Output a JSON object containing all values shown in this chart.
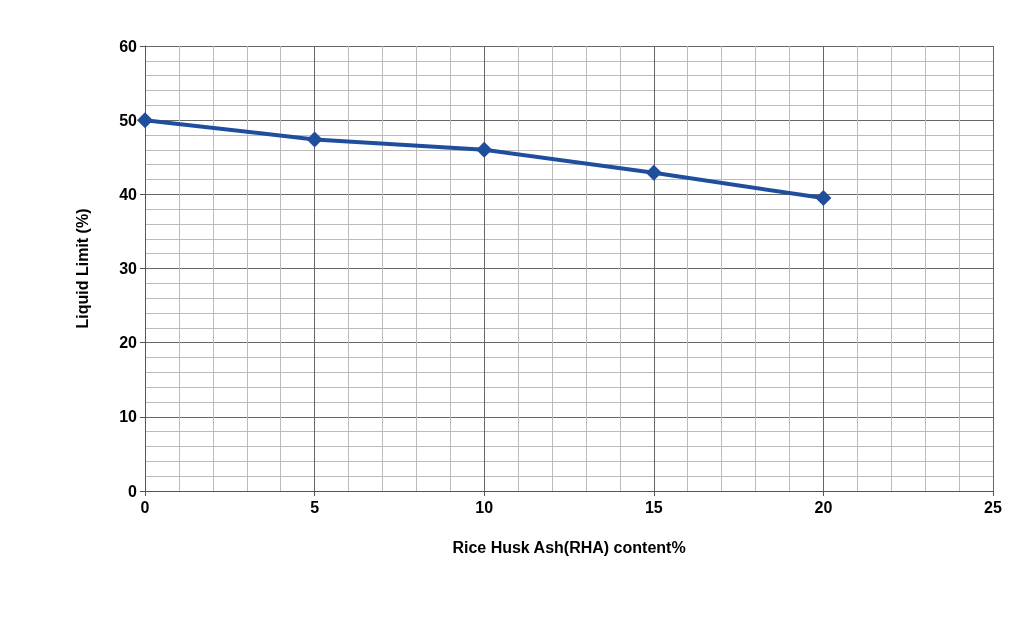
{
  "chart_data": {
    "type": "line",
    "xlabel": "Rice Husk Ash(RHA) content%",
    "ylabel": "Liquid Limit (%)",
    "x": [
      0,
      5,
      10,
      15,
      20
    ],
    "series": [
      {
        "color": "#1f4e9c",
        "values": [
          50,
          47.4,
          46,
          42.9,
          39.5
        ]
      }
    ],
    "xlim": [
      0,
      25
    ],
    "xticks": [
      0,
      5,
      10,
      15,
      20,
      25
    ],
    "ylim": [
      0,
      60
    ],
    "yticks": [
      0,
      10,
      20,
      30,
      40,
      50,
      60
    ],
    "grid": true,
    "marker": "diamond",
    "line_style": "solid"
  }
}
